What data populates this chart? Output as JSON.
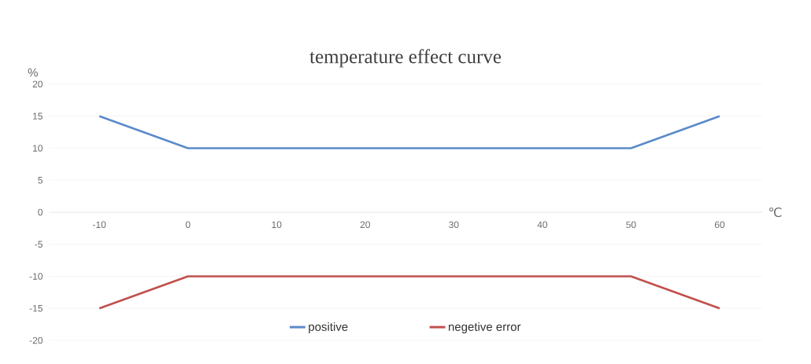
{
  "chart_data": {
    "type": "line",
    "title": "temperature effect curve",
    "ylabel": "%",
    "xlabel": "℃",
    "x": [
      -10,
      0,
      10,
      20,
      30,
      40,
      50,
      60
    ],
    "series": [
      {
        "name": "positive",
        "color": "#5b8bc9",
        "values": [
          15,
          10,
          10,
          10,
          10,
          10,
          10,
          15
        ]
      },
      {
        "name": "negetive error",
        "color": "#c0504d",
        "values": [
          -15,
          -10,
          -10,
          -10,
          -10,
          -10,
          -10,
          -15
        ]
      }
    ],
    "xlim": [
      -15.7,
      64.8
    ],
    "ylim": [
      -20,
      20
    ],
    "xticks": [
      -10,
      0,
      10,
      20,
      30,
      40,
      50,
      60
    ],
    "yticks": [
      -20,
      -15,
      -10,
      -5,
      0,
      5,
      10,
      15,
      20
    ],
    "grid": "y",
    "legend": "bottom",
    "marker": "none",
    "line_style": "solid"
  }
}
